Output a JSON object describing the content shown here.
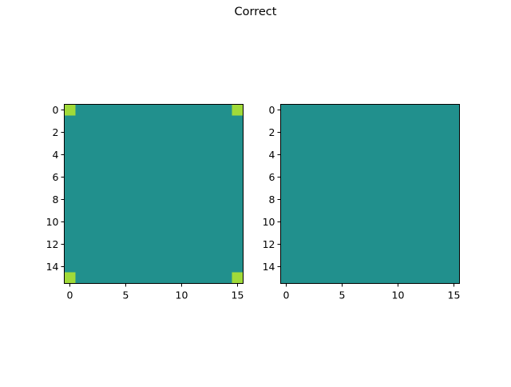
{
  "figure": {
    "title": "Correct"
  },
  "chart_data": [
    {
      "type": "heatmap",
      "title": "",
      "xlabel": "",
      "ylabel": "",
      "xlim": [
        -0.5,
        15.5
      ],
      "ylim": [
        15.5,
        -0.5
      ],
      "grid": false,
      "xticks": [
        0,
        5,
        10,
        15
      ],
      "yticks": [
        0,
        2,
        4,
        6,
        8,
        10,
        12,
        14
      ],
      "rows": 16,
      "cols": 16,
      "base_value": 0,
      "base_color": "#21908d",
      "cells": [
        {
          "row": 0,
          "col": 0,
          "value": 1,
          "color": "#a0da39"
        },
        {
          "row": 0,
          "col": 15,
          "value": 1,
          "color": "#a0da39"
        },
        {
          "row": 15,
          "col": 0,
          "value": 1,
          "color": "#a0da39"
        },
        {
          "row": 15,
          "col": 15,
          "value": 1,
          "color": "#a0da39"
        }
      ]
    },
    {
      "type": "heatmap",
      "title": "",
      "xlabel": "",
      "ylabel": "",
      "xlim": [
        -0.5,
        15.5
      ],
      "ylim": [
        15.5,
        -0.5
      ],
      "grid": false,
      "xticks": [
        0,
        5,
        10,
        15
      ],
      "yticks": [
        0,
        2,
        4,
        6,
        8,
        10,
        12,
        14
      ],
      "rows": 16,
      "cols": 16,
      "base_value": 0,
      "base_color": "#21908d",
      "cells": []
    }
  ]
}
